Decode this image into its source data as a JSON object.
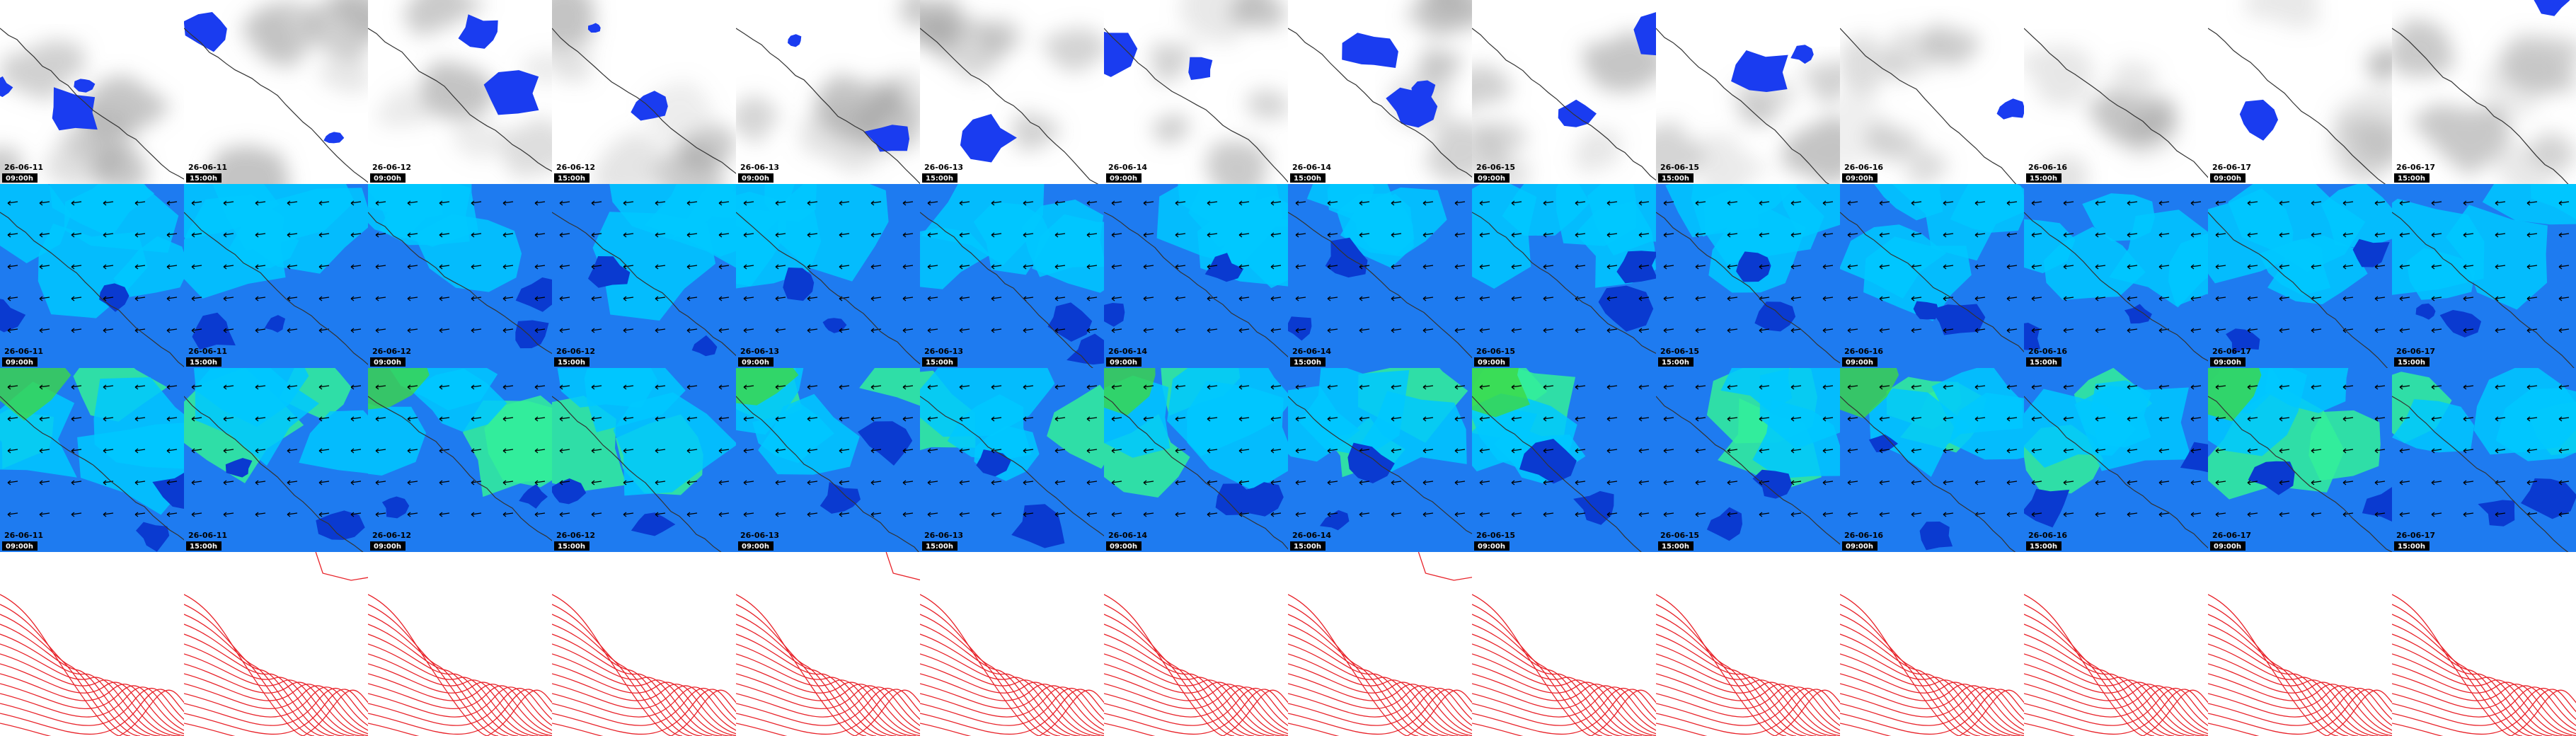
{
  "columns": [
    {
      "date": "26-06-11",
      "time": "09:00h"
    },
    {
      "date": "26-06-11",
      "time": "15:00h"
    },
    {
      "date": "26-06-12",
      "time": "09:00h"
    },
    {
      "date": "26-06-12",
      "time": "15:00h"
    },
    {
      "date": "26-06-13",
      "time": "09:00h"
    },
    {
      "date": "26-06-13",
      "time": "15:00h"
    },
    {
      "date": "26-06-14",
      "time": "09:00h"
    },
    {
      "date": "26-06-14",
      "time": "15:00h"
    },
    {
      "date": "26-06-15",
      "time": "09:00h"
    },
    {
      "date": "26-06-15",
      "time": "15:00h"
    },
    {
      "date": "26-06-16",
      "time": "09:00h"
    },
    {
      "date": "26-06-16",
      "time": "15:00h"
    },
    {
      "date": "26-06-17",
      "time": "09:00h"
    },
    {
      "date": "26-06-17",
      "time": "15:00h"
    }
  ]
}
